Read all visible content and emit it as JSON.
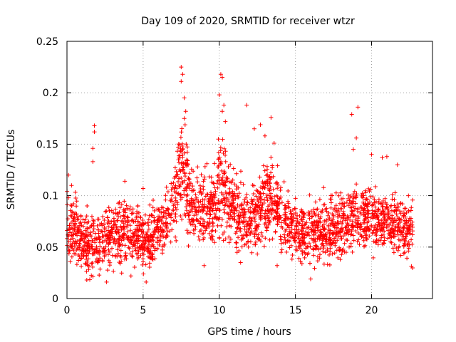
{
  "chart_data": {
    "type": "scatter",
    "title": "Day 109 of 2020, SRMTID for receiver wtzr",
    "xlabel": "GPS time / hours",
    "ylabel": "SRMTID / TECUs",
    "xlim": [
      0,
      24
    ],
    "ylim": [
      0,
      0.25
    ],
    "xticks": [
      0,
      5,
      10,
      15,
      20
    ],
    "xtick_labels": [
      "0",
      "5",
      "10",
      "15",
      "20"
    ],
    "yticks": [
      0,
      0.05,
      0.1,
      0.15,
      0.2,
      0.25
    ],
    "ytick_labels": [
      "0",
      "0.05",
      "0.1",
      "0.15",
      "0.2",
      "0.25"
    ],
    "grid": true,
    "marker": "plus",
    "color": "#ff0000",
    "series_name": "SRMTID",
    "envelope": [
      {
        "x": 0.0,
        "mean": 0.075,
        "spread": 0.022
      },
      {
        "x": 0.5,
        "mean": 0.068,
        "spread": 0.02
      },
      {
        "x": 1.0,
        "mean": 0.055,
        "spread": 0.018
      },
      {
        "x": 1.5,
        "mean": 0.05,
        "spread": 0.017
      },
      {
        "x": 2.0,
        "mean": 0.055,
        "spread": 0.018
      },
      {
        "x": 2.5,
        "mean": 0.058,
        "spread": 0.018
      },
      {
        "x": 3.0,
        "mean": 0.062,
        "spread": 0.018
      },
      {
        "x": 3.5,
        "mean": 0.062,
        "spread": 0.018
      },
      {
        "x": 4.0,
        "mean": 0.065,
        "spread": 0.019
      },
      {
        "x": 4.5,
        "mean": 0.062,
        "spread": 0.018
      },
      {
        "x": 5.0,
        "mean": 0.058,
        "spread": 0.018
      },
      {
        "x": 5.5,
        "mean": 0.058,
        "spread": 0.018
      },
      {
        "x": 6.0,
        "mean": 0.068,
        "spread": 0.02
      },
      {
        "x": 6.5,
        "mean": 0.078,
        "spread": 0.02
      },
      {
        "x": 7.0,
        "mean": 0.088,
        "spread": 0.02
      },
      {
        "x": 7.4,
        "mean": 0.13,
        "spread": 0.035
      },
      {
        "x": 7.8,
        "mean": 0.11,
        "spread": 0.03
      },
      {
        "x": 8.2,
        "mean": 0.09,
        "spread": 0.022
      },
      {
        "x": 9.0,
        "mean": 0.085,
        "spread": 0.022
      },
      {
        "x": 9.5,
        "mean": 0.082,
        "spread": 0.022
      },
      {
        "x": 10.0,
        "mean": 0.115,
        "spread": 0.035
      },
      {
        "x": 10.5,
        "mean": 0.105,
        "spread": 0.028
      },
      {
        "x": 11.0,
        "mean": 0.085,
        "spread": 0.022
      },
      {
        "x": 12.0,
        "mean": 0.075,
        "spread": 0.02
      },
      {
        "x": 13.0,
        "mean": 0.095,
        "spread": 0.024
      },
      {
        "x": 13.5,
        "mean": 0.095,
        "spread": 0.024
      },
      {
        "x": 14.0,
        "mean": 0.075,
        "spread": 0.02
      },
      {
        "x": 15.0,
        "mean": 0.068,
        "spread": 0.019
      },
      {
        "x": 16.0,
        "mean": 0.062,
        "spread": 0.018
      },
      {
        "x": 17.0,
        "mean": 0.065,
        "spread": 0.019
      },
      {
        "x": 18.0,
        "mean": 0.07,
        "spread": 0.02
      },
      {
        "x": 19.0,
        "mean": 0.08,
        "spread": 0.022
      },
      {
        "x": 20.0,
        "mean": 0.078,
        "spread": 0.021
      },
      {
        "x": 21.0,
        "mean": 0.072,
        "spread": 0.02
      },
      {
        "x": 22.0,
        "mean": 0.07,
        "spread": 0.02
      },
      {
        "x": 22.7,
        "mean": 0.065,
        "spread": 0.019
      }
    ],
    "outliers": [
      {
        "x": 1.8,
        "y": 0.168
      },
      {
        "x": 1.8,
        "y": 0.162
      },
      {
        "x": 1.7,
        "y": 0.146
      },
      {
        "x": 1.7,
        "y": 0.133
      },
      {
        "x": 7.5,
        "y": 0.225
      },
      {
        "x": 7.6,
        "y": 0.218
      },
      {
        "x": 7.5,
        "y": 0.211
      },
      {
        "x": 7.7,
        "y": 0.195
      },
      {
        "x": 7.8,
        "y": 0.182
      },
      {
        "x": 7.7,
        "y": 0.175
      },
      {
        "x": 10.1,
        "y": 0.218
      },
      {
        "x": 10.2,
        "y": 0.215
      },
      {
        "x": 10.0,
        "y": 0.198
      },
      {
        "x": 10.3,
        "y": 0.188
      },
      {
        "x": 10.2,
        "y": 0.182
      },
      {
        "x": 10.4,
        "y": 0.172
      },
      {
        "x": 11.8,
        "y": 0.188
      },
      {
        "x": 12.3,
        "y": 0.165
      },
      {
        "x": 12.7,
        "y": 0.169
      },
      {
        "x": 13.0,
        "y": 0.158
      },
      {
        "x": 13.4,
        "y": 0.176
      },
      {
        "x": 13.6,
        "y": 0.151
      },
      {
        "x": 18.7,
        "y": 0.179
      },
      {
        "x": 19.1,
        "y": 0.186
      },
      {
        "x": 19.0,
        "y": 0.156
      },
      {
        "x": 18.8,
        "y": 0.145
      },
      {
        "x": 20.0,
        "y": 0.14
      },
      {
        "x": 20.7,
        "y": 0.137
      },
      {
        "x": 21.0,
        "y": 0.138
      },
      {
        "x": 21.7,
        "y": 0.13
      },
      {
        "x": 1.3,
        "y": 0.018
      },
      {
        "x": 2.6,
        "y": 0.016
      },
      {
        "x": 5.2,
        "y": 0.016
      },
      {
        "x": 4.2,
        "y": 0.022
      },
      {
        "x": 16.0,
        "y": 0.019
      },
      {
        "x": 0.1,
        "y": 0.12
      },
      {
        "x": 0.3,
        "y": 0.11
      },
      {
        "x": 3.8,
        "y": 0.114
      },
      {
        "x": 5.0,
        "y": 0.107
      },
      {
        "x": 9.0,
        "y": 0.032
      },
      {
        "x": 11.4,
        "y": 0.035
      },
      {
        "x": 13.8,
        "y": 0.032
      }
    ],
    "point_count": 2600
  }
}
